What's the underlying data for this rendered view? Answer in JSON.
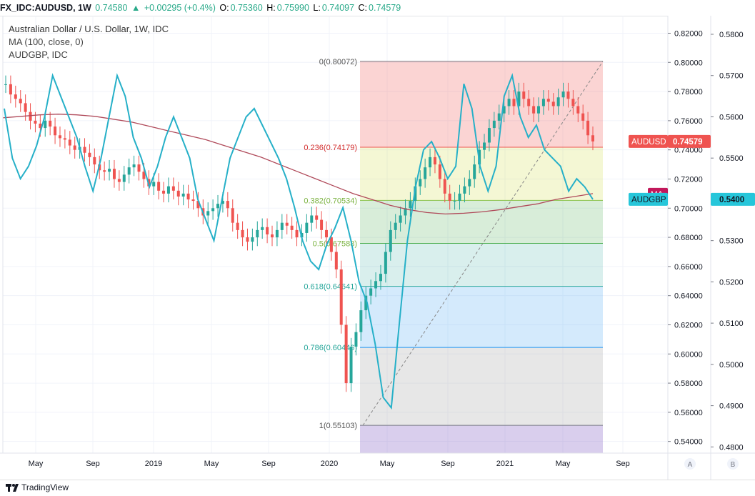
{
  "header": {
    "symbol": "FX_IDC:AUDUSD, 1W",
    "last": "0.74580",
    "change": "+0.00295 (+0.4%)",
    "o_label": "O:",
    "o": "0.75360",
    "h_label": "H:",
    "h": "0.75990",
    "l_label": "L:",
    "l": "0.74097",
    "c_label": "C:",
    "c": "0.74579"
  },
  "legend": {
    "title": "Australian Dollar / U.S. Dollar, 1W, IDC",
    "ma": "MA (100, close, 0)",
    "compare": "AUDGBP, IDC"
  },
  "badges": {
    "audusd_label": "AUDUSD",
    "audusd_value": "0.74579",
    "ma_label": "MA",
    "audgbp_label": "AUDGBP",
    "audgbp_value": "0.5400"
  },
  "footer": {
    "brand": "TradingView",
    "scale_a": "A",
    "scale_b": "B"
  },
  "colors": {
    "up": "#26a69a",
    "down": "#ef5350",
    "ma": "#b04a5a",
    "compare": "#26b0c8",
    "badge_audusd": "#ef5350",
    "badge_ma": "#c2185b",
    "badge_audgbp": "#26c6da"
  },
  "chart_data": {
    "type": "line",
    "x_ticks": [
      "May",
      "Sep",
      "2019",
      "May",
      "Sep",
      "2020",
      "May",
      "Sep",
      "2021",
      "May",
      "Sep"
    ],
    "y_ticks_left": [
      "0.82000",
      "0.80000",
      "0.78000",
      "0.76000",
      "0.74000",
      "0.72000",
      "0.70000",
      "0.68000",
      "0.66000",
      "0.64000",
      "0.62000",
      "0.60000",
      "0.58000",
      "0.56000",
      "0.54000"
    ],
    "y_ticks_right": [
      "0.5800",
      "0.5700",
      "0.5600",
      "0.5500",
      "0.5400",
      "0.5300",
      "0.5200",
      "0.5100",
      "0.5000",
      "0.4900",
      "0.4800"
    ],
    "ylim_left": [
      0.532,
      0.832
    ],
    "ylim_right": [
      0.4785,
      0.5845
    ],
    "fib_levels": [
      {
        "label": "0(0.80072)",
        "value": 0.80072
      },
      {
        "label": "0.236(0.74179)",
        "value": 0.74179
      },
      {
        "label": "0.382(0.70534)",
        "value": 0.70534
      },
      {
        "label": "0.5(0.67588)",
        "value": 0.67588
      },
      {
        "label": "0.618(0.64641)",
        "value": 0.64641
      },
      {
        "label": "0.786(0.60446)",
        "value": 0.60446
      },
      {
        "label": "1(0.55103)",
        "value": 0.55103
      }
    ],
    "series": [
      {
        "name": "AUDUSD",
        "y": [
          0.785,
          0.778,
          0.775,
          0.772,
          0.766,
          0.76,
          0.758,
          0.755,
          0.76,
          0.756,
          0.75,
          0.748,
          0.747,
          0.743,
          0.74,
          0.742,
          0.738,
          0.735,
          0.73,
          0.726,
          0.725,
          0.727,
          0.72,
          0.718,
          0.723,
          0.728,
          0.73,
          0.725,
          0.72,
          0.715,
          0.718,
          0.712,
          0.71,
          0.715,
          0.712,
          0.708,
          0.71,
          0.706,
          0.705,
          0.7,
          0.695,
          0.698,
          0.7,
          0.703,
          0.705,
          0.7,
          0.69,
          0.685,
          0.68,
          0.677,
          0.68,
          0.685,
          0.687,
          0.682,
          0.68,
          0.685,
          0.69,
          0.688,
          0.685,
          0.68,
          0.683,
          0.69,
          0.695,
          0.692,
          0.685,
          0.68,
          0.67,
          0.658,
          0.62,
          0.58,
          0.605,
          0.615,
          0.63,
          0.64,
          0.645,
          0.65,
          0.655,
          0.67,
          0.685,
          0.69,
          0.695,
          0.7,
          0.705,
          0.715,
          0.72,
          0.728,
          0.735,
          0.73,
          0.72,
          0.71,
          0.705,
          0.705,
          0.71,
          0.715,
          0.72,
          0.73,
          0.74,
          0.745,
          0.755,
          0.76,
          0.765,
          0.77,
          0.775,
          0.77,
          0.78,
          0.775,
          0.77,
          0.765,
          0.77,
          0.775,
          0.773,
          0.77,
          0.776,
          0.78,
          0.775,
          0.77,
          0.765,
          0.76,
          0.75,
          0.7458
        ]
      },
      {
        "name": "MA",
        "y": [
          0.762,
          0.763,
          0.764,
          0.7645,
          0.764,
          0.763,
          0.761,
          0.759,
          0.756,
          0.753,
          0.75,
          0.747,
          0.743,
          0.739,
          0.735,
          0.73,
          0.725,
          0.72,
          0.715,
          0.71,
          0.706,
          0.702,
          0.699,
          0.697,
          0.696,
          0.6965,
          0.6975,
          0.699,
          0.701,
          0.703,
          0.706,
          0.708,
          0.71
        ]
      },
      {
        "name": "AUDGBP",
        "y": [
          0.562,
          0.55,
          0.545,
          0.548,
          0.553,
          0.56,
          0.57,
          0.565,
          0.56,
          0.555,
          0.548,
          0.542,
          0.55,
          0.56,
          0.57,
          0.565,
          0.555,
          0.55,
          0.543,
          0.548,
          0.555,
          0.56,
          0.555,
          0.55,
          0.54,
          0.535,
          0.53,
          0.54,
          0.55,
          0.555,
          0.56,
          0.562,
          0.558,
          0.554,
          0.55,
          0.545,
          0.538,
          0.53,
          0.525,
          0.523,
          0.529,
          0.533,
          0.538,
          0.53,
          0.52,
          0.515,
          0.505,
          0.492,
          0.4895,
          0.51,
          0.53,
          0.543,
          0.552,
          0.554,
          0.55,
          0.545,
          0.548,
          0.568,
          0.562,
          0.548,
          0.542,
          0.548,
          0.565,
          0.57,
          0.56,
          0.555,
          0.558,
          0.552,
          0.55,
          0.548,
          0.542,
          0.545,
          0.543,
          0.54
        ]
      }
    ]
  }
}
